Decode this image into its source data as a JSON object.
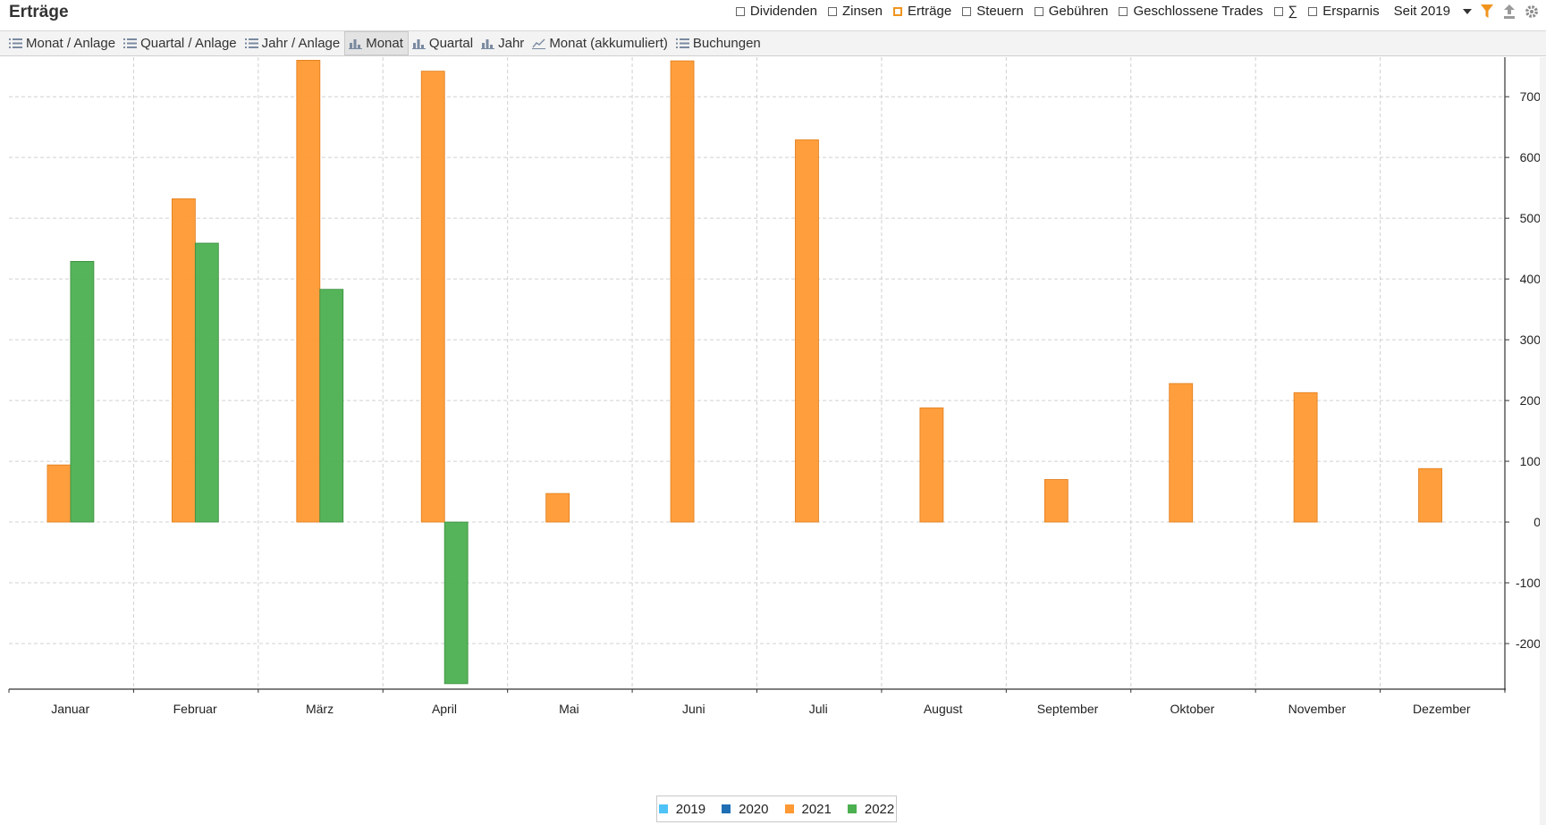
{
  "header": {
    "title": "Erträge",
    "filters": [
      {
        "label": "Dividenden",
        "checked": false
      },
      {
        "label": "Zinsen",
        "checked": false
      },
      {
        "label": "Erträge",
        "checked": true
      },
      {
        "label": "Steuern",
        "checked": false
      },
      {
        "label": "Gebühren",
        "checked": false
      },
      {
        "label": "Geschlossene Trades",
        "checked": false
      },
      {
        "label": "∑",
        "checked": false
      },
      {
        "label": "Ersparnis",
        "checked": false
      }
    ],
    "period": "Seit 2019"
  },
  "tabs": [
    {
      "label": "Monat / Anlage",
      "icon": "list-icon"
    },
    {
      "label": "Quartal / Anlage",
      "icon": "list-icon"
    },
    {
      "label": "Jahr / Anlage",
      "icon": "list-icon"
    },
    {
      "label": "Monat",
      "icon": "bar-chart-icon",
      "active": true
    },
    {
      "label": "Quartal",
      "icon": "bar-chart-icon"
    },
    {
      "label": "Jahr",
      "icon": "bar-chart-icon"
    },
    {
      "label": "Monat (akkumuliert)",
      "icon": "line-chart-icon"
    },
    {
      "label": "Buchungen",
      "icon": "list-icon"
    }
  ],
  "colors": {
    "y2019": "#4fc3f7",
    "y2020": "#1f6fb5",
    "y2021": "#ff9933",
    "y2022": "#4caf50",
    "accent_filter": "#f0941e"
  },
  "chart_data": {
    "type": "bar",
    "categories": [
      "Januar",
      "Februar",
      "März",
      "April",
      "Mai",
      "Juni",
      "Juli",
      "August",
      "September",
      "Oktober",
      "November",
      "Dezember"
    ],
    "series": [
      {
        "name": "2019",
        "color": "#4fc3f7",
        "values": [
          0,
          0,
          0,
          0,
          0,
          0,
          0,
          0,
          0,
          0,
          0,
          0
        ]
      },
      {
        "name": "2020",
        "color": "#1f6fb5",
        "values": [
          0,
          0,
          0,
          0,
          0,
          0,
          0,
          0,
          0,
          0,
          0,
          0
        ]
      },
      {
        "name": "2021",
        "color": "#ff9933",
        "values": [
          94,
          532,
          760,
          742,
          47,
          759,
          629,
          188,
          70,
          228,
          213,
          88
        ]
      },
      {
        "name": "2022",
        "color": "#4caf50",
        "values": [
          429,
          459,
          383,
          -266,
          null,
          null,
          null,
          null,
          null,
          null,
          null,
          null
        ]
      }
    ],
    "yticks": [
      -200,
      -100,
      0,
      100,
      200,
      300,
      400,
      500,
      600,
      700
    ],
    "ylim": [
      -275,
      765
    ],
    "y_axis_side": "right",
    "grid": true,
    "legend": "bottom-center"
  }
}
